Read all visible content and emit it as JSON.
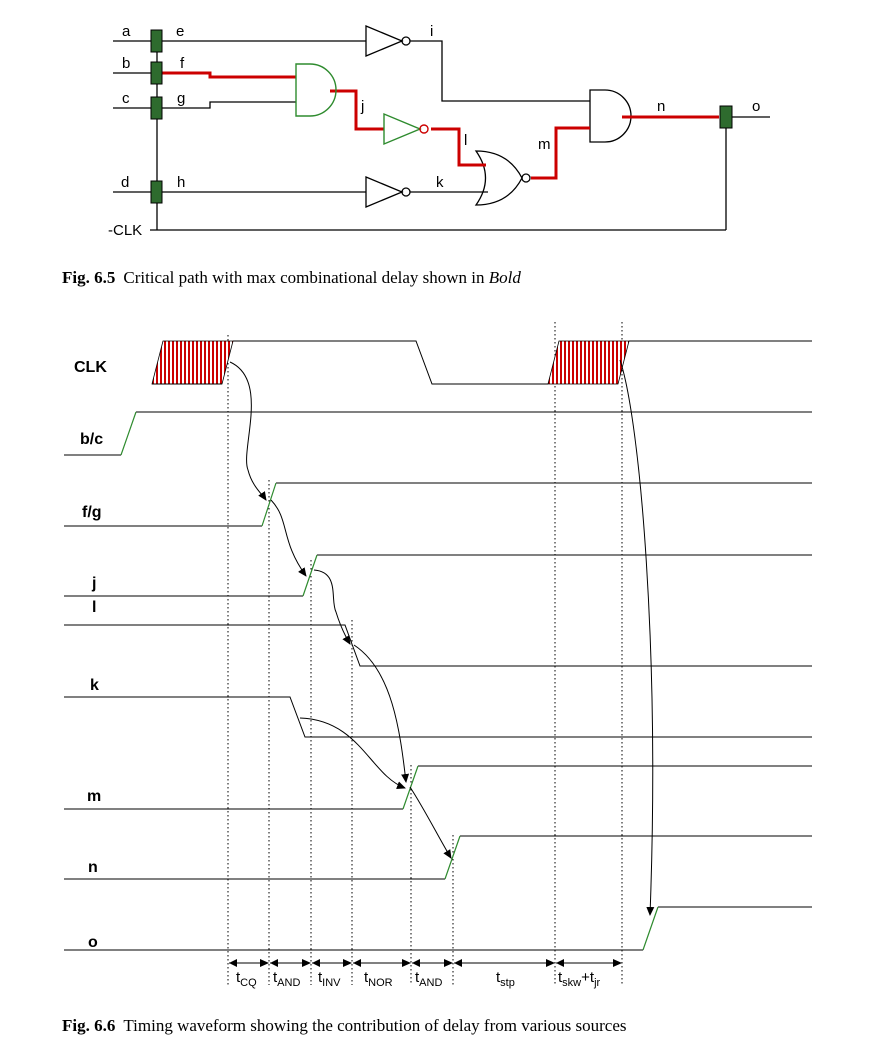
{
  "fig1": {
    "inputs": [
      "a",
      "b",
      "c",
      "d"
    ],
    "internal": [
      "e",
      "f",
      "g",
      "h",
      "i",
      "j",
      "k",
      "l",
      "m",
      "n",
      "o"
    ],
    "clock_label": "-CLK",
    "caption_num": "Fig. 6.5",
    "caption_text": "Critical path with max combinational delay shown in ",
    "caption_emph": "Bold"
  },
  "fig2": {
    "signals": [
      "CLK",
      "b/c",
      "f/g",
      "j",
      "l",
      "k",
      "m",
      "n",
      "o"
    ],
    "delays": [
      {
        "t": "t",
        "sub": "CQ"
      },
      {
        "t": "t",
        "sub": "AND"
      },
      {
        "t": "t",
        "sub": "INV"
      },
      {
        "t": "t",
        "sub": "NOR"
      },
      {
        "t": "t",
        "sub": "AND"
      },
      {
        "t": "t",
        "sub": "stp"
      },
      {
        "t": "t",
        "sub": "skw",
        "plus": "+",
        "t2": "t",
        "sub2": "jr"
      }
    ],
    "caption_num": "Fig. 6.6",
    "caption_text": "Timing waveform showing the contribution of delay from various sources"
  },
  "colors": {
    "critical": "#cc0000",
    "flipflop": "#2e6b2e",
    "gate_critical": "#2e8b2e",
    "edge": "#2e8b2e",
    "hatch": "#cc0000"
  }
}
